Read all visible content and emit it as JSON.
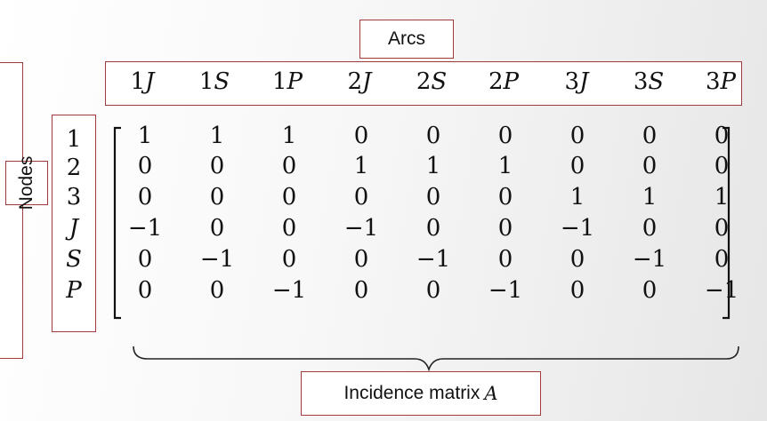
{
  "arcs_label": "Arcs",
  "nodes_label": "Nodes",
  "caption": {
    "text": "Incidence matrix",
    "variable": "A"
  },
  "arcs": [
    {
      "num": "1",
      "letter": "J"
    },
    {
      "num": "1",
      "letter": "S"
    },
    {
      "num": "1",
      "letter": "P"
    },
    {
      "num": "2",
      "letter": "J"
    },
    {
      "num": "2",
      "letter": "S"
    },
    {
      "num": "2",
      "letter": "P"
    },
    {
      "num": "3",
      "letter": "J"
    },
    {
      "num": "3",
      "letter": "S"
    },
    {
      "num": "3",
      "letter": "P"
    }
  ],
  "nodes": [
    {
      "label": "1",
      "italic": false
    },
    {
      "label": "2",
      "italic": false
    },
    {
      "label": "3",
      "italic": false
    },
    {
      "label": "J",
      "italic": true
    },
    {
      "label": "S",
      "italic": true
    },
    {
      "label": "P",
      "italic": true
    }
  ],
  "matrix": [
    [
      "1",
      "1",
      "1",
      "0",
      "0",
      "0",
      "0",
      "0",
      "0"
    ],
    [
      "0",
      "0",
      "0",
      "1",
      "1",
      "1",
      "0",
      "0",
      "0"
    ],
    [
      "0",
      "0",
      "0",
      "0",
      "0",
      "0",
      "1",
      "1",
      "1"
    ],
    [
      "−1",
      "0",
      "0",
      "−1",
      "0",
      "0",
      "−1",
      "0",
      "0"
    ],
    [
      "0",
      "−1",
      "0",
      "0",
      "−1",
      "0",
      "0",
      "−1",
      "0"
    ],
    [
      "0",
      "0",
      "−1",
      "0",
      "0",
      "−1",
      "0",
      "0",
      "−1"
    ]
  ],
  "colors": {
    "box_border": "#a33a3a",
    "text": "#111111"
  }
}
